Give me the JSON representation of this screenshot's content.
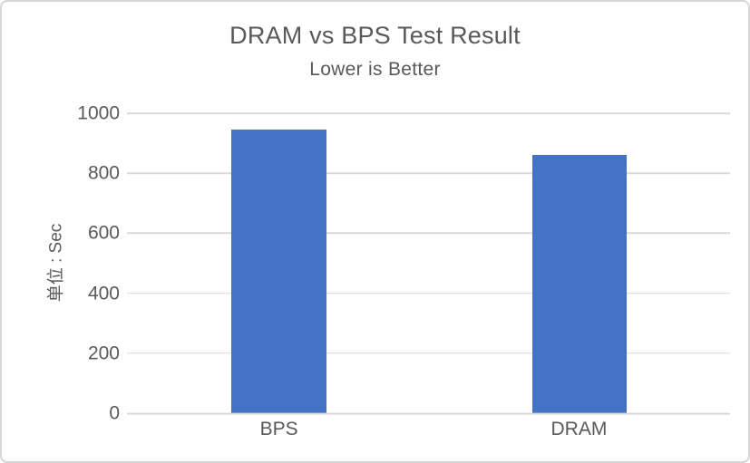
{
  "chart_data": {
    "type": "bar",
    "title": "DRAM vs BPS Test Result",
    "subtitle": "Lower is Better",
    "categories": [
      "BPS",
      "DRAM"
    ],
    "values": [
      945,
      860
    ],
    "xlabel": "",
    "ylabel": "单位 : Sec",
    "ylim": [
      0,
      1000
    ],
    "ytick_interval": 200,
    "yticks": [
      "1000",
      "800",
      "600",
      "400",
      "200",
      "0"
    ],
    "grid": "horizontal-only",
    "legend": "none",
    "colors": {
      "bar": "#4472C4",
      "gridline": "#D9D9D9",
      "text": "#595959",
      "frame_border": "#D6D6D6",
      "background": "#FFFFFF"
    }
  }
}
